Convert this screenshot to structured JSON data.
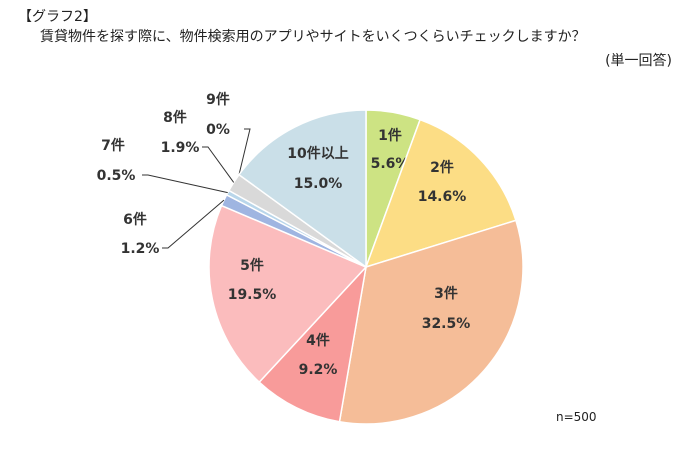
{
  "chart_data": {
    "type": "pie",
    "tag": "【グラフ2】",
    "title": "賃貸物件を探す際に、物件検索用のアプリやサイトをいくつくらいチェックしますか？",
    "subtitle": "(単一回答)",
    "note": "n=500",
    "categories": [
      "1件",
      "2件",
      "3件",
      "4件",
      "5件",
      "6件",
      "7件",
      "8件",
      "9件",
      "10件以上"
    ],
    "values": [
      5.6,
      14.6,
      32.5,
      9.2,
      19.5,
      1.2,
      0.5,
      1.9,
      0,
      15.0
    ],
    "value_labels": [
      "5.6%",
      "14.6%",
      "32.5%",
      "9.2%",
      "19.5%",
      "1.2%",
      "0.5%",
      "1.9%",
      "0%",
      "15.0%"
    ],
    "colors": [
      "#cde383",
      "#fcdd85",
      "#f5bd98",
      "#f89b9a",
      "#fbbcbd",
      "#9fb5e1",
      "#b9d6ea",
      "#d9d9d9",
      "#c9c9c9",
      "#cadfe8"
    ]
  }
}
